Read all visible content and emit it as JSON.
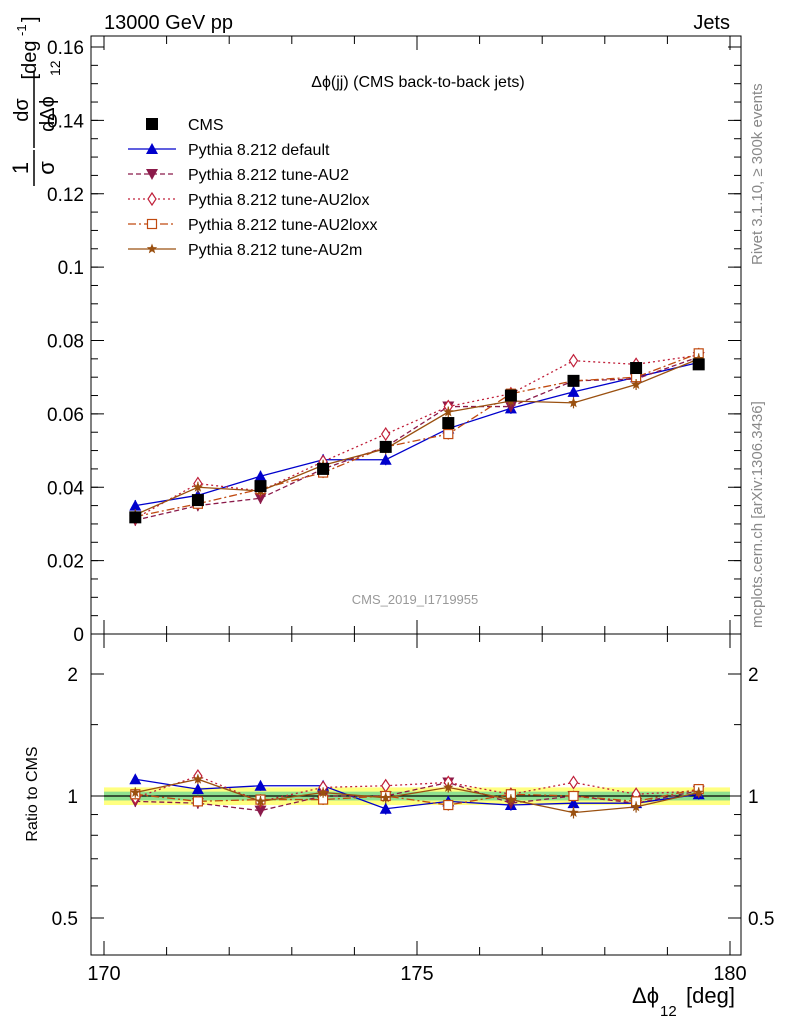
{
  "header": {
    "left": "13000 GeV pp",
    "right": "Jets"
  },
  "side_labels": {
    "rivet": "Rivet 3.1.10, ≥ 300k events",
    "mcplots": "mcplots.cern.ch [arXiv:1306.3436]"
  },
  "watermark": "CMS_2019_I1719955",
  "chart_data": [
    {
      "type": "line",
      "panel": "main",
      "title": "Δϕ(jj) (CMS back-to-back jets)",
      "xlabel": "Δϕ",
      "xlabel_sub": "12",
      "xlabel_unit": "[deg]",
      "ylabel": "1/σ dσ/dΔϕ₁₂ [deg⁻¹]",
      "ylabel_parts": {
        "num": "1",
        "num2": "dσ",
        "den": "σ",
        "den2": "dΔϕ",
        "sub": "12",
        "unit": "[deg",
        "unit_sup": "-1",
        "unit_end": "]"
      },
      "xlim": [
        170,
        180
      ],
      "ylim": [
        0,
        0.165
      ],
      "yticks": [
        "0",
        "0.02",
        "0.04",
        "0.06",
        "0.08",
        "0.1",
        "0.12",
        "0.14",
        "0.16"
      ],
      "ytick_values": [
        0,
        0.02,
        0.04,
        0.06,
        0.08,
        0.1,
        0.12,
        0.14,
        0.16
      ],
      "legend_position": "top-left",
      "x": [
        170.5,
        171.5,
        172.5,
        173.5,
        174.5,
        175.5,
        176.5,
        177.5,
        178.5,
        179.5
      ],
      "series": [
        {
          "name": "CMS",
          "color": "#000000",
          "marker": "square-filled",
          "line": "none",
          "values": [
            0.0318,
            0.0365,
            0.0403,
            0.045,
            0.051,
            0.0575,
            0.065,
            0.069,
            0.0725,
            0.0735
          ],
          "err": 0.0012
        },
        {
          "name": "Pythia 8.212 default",
          "color": "#0000cc",
          "marker": "triangle-up",
          "line": "solid",
          "values": [
            0.035,
            0.0378,
            0.043,
            0.0475,
            0.0475,
            0.056,
            0.0615,
            0.066,
            0.07,
            0.074
          ],
          "err": 0.0015
        },
        {
          "name": "Pythia 8.212 tune-AU2",
          "color": "#8b1a4a",
          "marker": "triangle-down",
          "line": "dashed",
          "values": [
            0.031,
            0.035,
            0.037,
            0.045,
            0.051,
            0.062,
            0.062,
            0.069,
            0.0695,
            0.0755
          ],
          "err": 0.0015
        },
        {
          "name": "Pythia 8.212 tune-AU2lox",
          "color": "#c0203a",
          "marker": "diamond-open",
          "line": "dotted",
          "values": [
            0.0315,
            0.041,
            0.039,
            0.047,
            0.0545,
            0.062,
            0.0655,
            0.0745,
            0.0735,
            0.076
          ],
          "err": 0.0017
        },
        {
          "name": "Pythia 8.212 tune-AU2loxx",
          "color": "#c04a10",
          "marker": "square-open",
          "line": "dashdot",
          "values": [
            0.032,
            0.0355,
            0.0395,
            0.044,
            0.051,
            0.0545,
            0.0655,
            0.069,
            0.07,
            0.0765
          ],
          "err": 0.0015
        },
        {
          "name": "Pythia 8.212 tune-AU2m",
          "color": "#9a5010",
          "marker": "star",
          "line": "solid",
          "values": [
            0.0325,
            0.04,
            0.039,
            0.046,
            0.0505,
            0.0605,
            0.0635,
            0.063,
            0.068,
            0.075
          ],
          "err": 0.0015
        }
      ]
    },
    {
      "type": "line",
      "panel": "ratio",
      "ylabel": "Ratio to CMS",
      "xlim": [
        170,
        180
      ],
      "ylim": [
        0.4,
        2.3
      ],
      "y_scale": "log",
      "yticks": [
        "0.5",
        "1",
        "2"
      ],
      "ytick_values": [
        0.5,
        1,
        2
      ],
      "xticks": [
        "170",
        "175",
        "180"
      ],
      "xtick_values": [
        170,
        175,
        180
      ],
      "reference_band": {
        "inner": [
          0.975,
          1.025
        ],
        "outer": [
          0.95,
          1.05
        ],
        "inner_color": "#8fe08f",
        "outer_color": "#ffff80"
      },
      "x": [
        170.5,
        171.5,
        172.5,
        173.5,
        174.5,
        175.5,
        176.5,
        177.5,
        178.5,
        179.5
      ],
      "series": [
        {
          "name": "Pythia 8.212 default",
          "values": [
            1.1,
            1.04,
            1.06,
            1.06,
            0.93,
            0.97,
            0.95,
            0.96,
            0.96,
            1.01
          ],
          "err": 0.03
        },
        {
          "name": "Pythia 8.212 tune-AU2",
          "values": [
            0.97,
            0.96,
            0.92,
            1.0,
            1.0,
            1.08,
            0.96,
            1.0,
            0.96,
            1.03
          ],
          "err": 0.03
        },
        {
          "name": "Pythia 8.212 tune-AU2lox",
          "values": [
            0.99,
            1.12,
            0.97,
            1.05,
            1.06,
            1.08,
            1.01,
            1.08,
            1.01,
            1.03
          ],
          "err": 0.035
        },
        {
          "name": "Pythia 8.212 tune-AU2loxx",
          "values": [
            1.01,
            0.97,
            0.98,
            0.98,
            1.0,
            0.95,
            1.01,
            1.0,
            0.97,
            1.04
          ],
          "err": 0.03
        },
        {
          "name": "Pythia 8.212 tune-AU2m",
          "values": [
            1.02,
            1.1,
            0.97,
            1.02,
            0.99,
            1.05,
            0.98,
            0.91,
            0.94,
            1.02
          ],
          "err": 0.03
        }
      ]
    }
  ]
}
